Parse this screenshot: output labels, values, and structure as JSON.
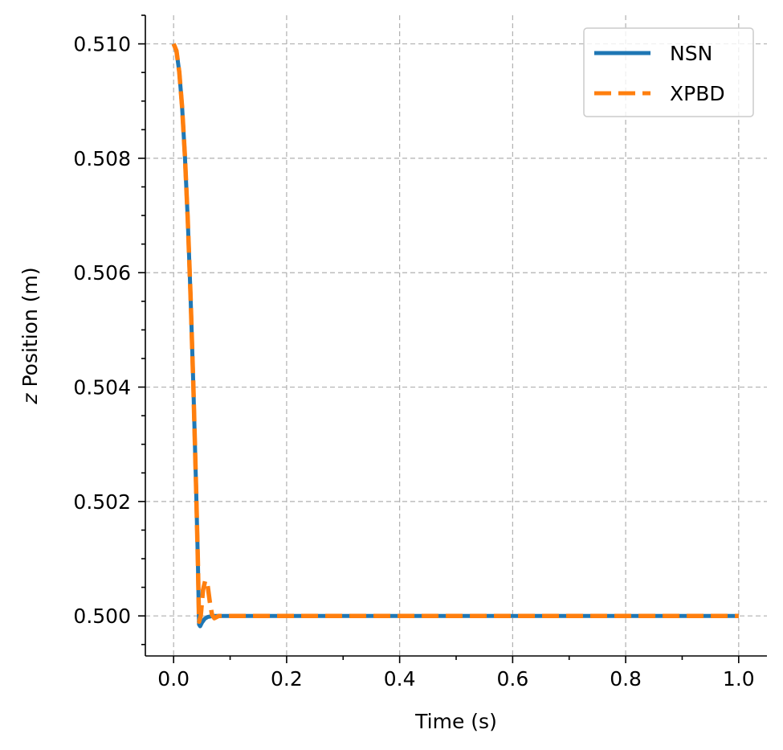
{
  "chart_data": {
    "type": "line",
    "title": "",
    "xlabel": "Time (s)",
    "ylabel_var": "z",
    "ylabel_rest": " Position (m)",
    "xlim": [
      -0.05,
      1.05
    ],
    "ylim": [
      0.4993,
      0.5105
    ],
    "xticks": [
      0.0,
      0.2,
      0.4,
      0.6,
      0.8,
      1.0
    ],
    "xtick_labels": [
      "0.0",
      "0.2",
      "0.4",
      "0.6",
      "0.8",
      "1.0"
    ],
    "xminor": [
      0.1,
      0.3,
      0.5,
      0.7,
      0.9
    ],
    "yticks": [
      0.5,
      0.502,
      0.504,
      0.506,
      0.508,
      0.51
    ],
    "ytick_labels": [
      "0.500",
      "0.502",
      "0.504",
      "0.506",
      "0.508",
      "0.510"
    ],
    "yminor": [
      0.4995,
      0.5005,
      0.501,
      0.5015,
      0.5025,
      0.503,
      0.5035,
      0.5045,
      0.505,
      0.5055,
      0.5065,
      0.507,
      0.5075,
      0.5085,
      0.509,
      0.5095,
      0.5105
    ],
    "grid": true,
    "legend_position": "top-right",
    "series": [
      {
        "name": "NSN",
        "color": "#1f77b4",
        "style": "solid",
        "points": [
          [
            0.0,
            0.51
          ],
          [
            0.005,
            0.50988
          ],
          [
            0.01,
            0.50951
          ],
          [
            0.015,
            0.5089
          ],
          [
            0.02,
            0.50804
          ],
          [
            0.025,
            0.50694
          ],
          [
            0.03,
            0.50559
          ],
          [
            0.035,
            0.504
          ],
          [
            0.04,
            0.50216
          ],
          [
            0.043,
            0.50093
          ],
          [
            0.045,
            0.49985
          ],
          [
            0.047,
            0.49982
          ],
          [
            0.05,
            0.49988
          ],
          [
            0.055,
            0.49995
          ],
          [
            0.06,
            0.49998
          ],
          [
            0.07,
            0.5
          ],
          [
            0.1,
            0.5
          ],
          [
            0.2,
            0.5
          ],
          [
            0.4,
            0.5
          ],
          [
            0.6,
            0.5
          ],
          [
            0.8,
            0.5
          ],
          [
            1.0,
            0.5
          ]
        ]
      },
      {
        "name": "XPBD",
        "color": "#ff7f0e",
        "style": "dashed",
        "points": [
          [
            0.0,
            0.51
          ],
          [
            0.005,
            0.50988
          ],
          [
            0.01,
            0.50951
          ],
          [
            0.015,
            0.5089
          ],
          [
            0.02,
            0.50804
          ],
          [
            0.025,
            0.50694
          ],
          [
            0.03,
            0.50559
          ],
          [
            0.035,
            0.504
          ],
          [
            0.04,
            0.50216
          ],
          [
            0.043,
            0.50093
          ],
          [
            0.045,
            0.4999
          ],
          [
            0.048,
            0.5
          ],
          [
            0.052,
            0.50045
          ],
          [
            0.056,
            0.50062
          ],
          [
            0.06,
            0.50055
          ],
          [
            0.064,
            0.50025
          ],
          [
            0.068,
            0.50002
          ],
          [
            0.072,
            0.49996
          ],
          [
            0.08,
            0.5
          ],
          [
            0.1,
            0.5
          ],
          [
            0.2,
            0.5
          ],
          [
            0.4,
            0.5
          ],
          [
            0.6,
            0.5
          ],
          [
            0.8,
            0.5
          ],
          [
            1.0,
            0.5
          ]
        ]
      }
    ]
  }
}
